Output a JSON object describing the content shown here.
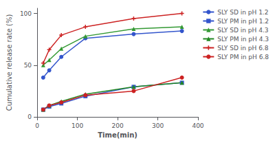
{
  "chart_data": {
    "type": "line",
    "xlabel": "Time(min)",
    "ylabel": "Cumulative release rate (%)",
    "xlim": [
      0,
      400
    ],
    "ylim": [
      0,
      105
    ],
    "xticks": [
      0,
      100,
      200,
      300,
      400
    ],
    "yticks": [
      0,
      50,
      100
    ],
    "grid": false,
    "legend": "right",
    "series": [
      {
        "name": "SLY SD in pH 1.2",
        "color": "#3355cc",
        "marker": "circle",
        "x": [
          15,
          30,
          60,
          120,
          240,
          360
        ],
        "values": [
          38,
          45,
          58,
          76,
          80,
          83
        ]
      },
      {
        "name": "SLY PM in pH 1.2",
        "color": "#3355cc",
        "marker": "square",
        "x": [
          15,
          30,
          60,
          120,
          240,
          360
        ],
        "values": [
          7,
          10,
          13,
          20,
          29,
          33
        ]
      },
      {
        "name": "SLY SD in pH 4.3",
        "color": "#339933",
        "marker": "triangle",
        "x": [
          15,
          30,
          60,
          120,
          240,
          360
        ],
        "values": [
          50,
          55,
          66,
          78,
          85,
          87
        ]
      },
      {
        "name": "SLY PM in pH 4.3",
        "color": "#228822",
        "marker": "triangle",
        "x": [
          15,
          30,
          60,
          120,
          240,
          360
        ],
        "values": [
          7,
          11,
          15,
          22,
          29,
          33
        ]
      },
      {
        "name": "SLY SD in pH 6.8",
        "color": "#cc2222",
        "marker": "plus",
        "x": [
          15,
          30,
          60,
          120,
          240,
          360
        ],
        "values": [
          52,
          65,
          79,
          87,
          95,
          100
        ]
      },
      {
        "name": "SLY PM in pH 6.8",
        "color": "#cc2222",
        "marker": "circle",
        "x": [
          15,
          30,
          60,
          120,
          240,
          360
        ],
        "values": [
          7,
          11,
          14,
          21,
          25,
          38
        ]
      }
    ]
  }
}
